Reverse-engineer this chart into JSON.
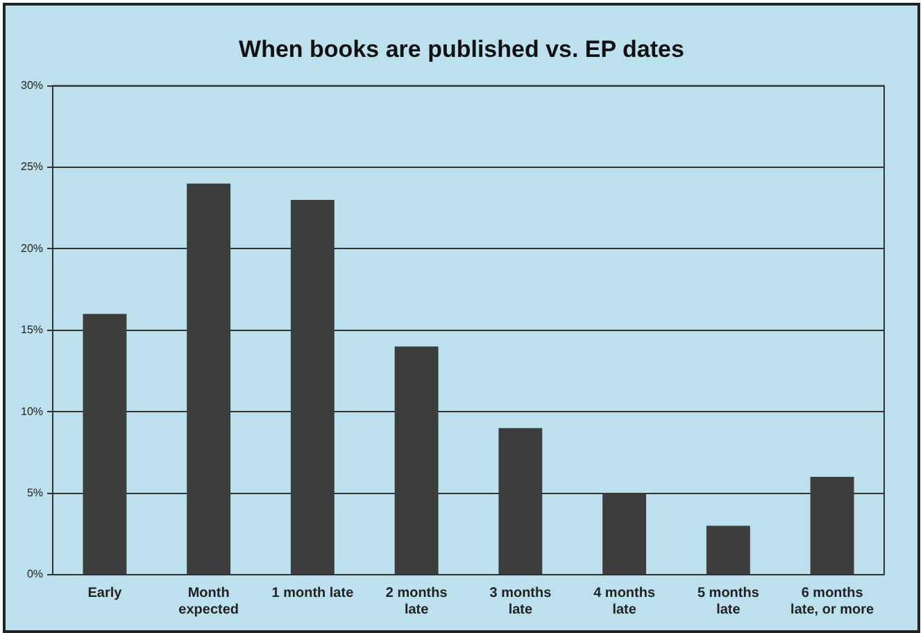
{
  "chart_data": {
    "type": "bar",
    "title": "When books are published vs. EP dates",
    "categories": [
      "Early",
      "Month expected",
      "1 month late",
      "2 months late",
      "3 months late",
      "4 months late",
      "5 months late",
      "6 months late, or more"
    ],
    "values": [
      16,
      24,
      23,
      14,
      9,
      5,
      3,
      6
    ],
    "color": "#3d3d3d",
    "ylim": [
      0,
      30
    ],
    "yticks": [
      {
        "value": 0,
        "label": "0%"
      },
      {
        "value": 5,
        "label": "5%"
      },
      {
        "value": 10,
        "label": "10%"
      },
      {
        "value": 15,
        "label": "15%"
      },
      {
        "value": 20,
        "label": "20%"
      },
      {
        "value": 25,
        "label": "25%"
      },
      {
        "value": 30,
        "label": "30%"
      }
    ],
    "grid": "y",
    "legend": false
  }
}
